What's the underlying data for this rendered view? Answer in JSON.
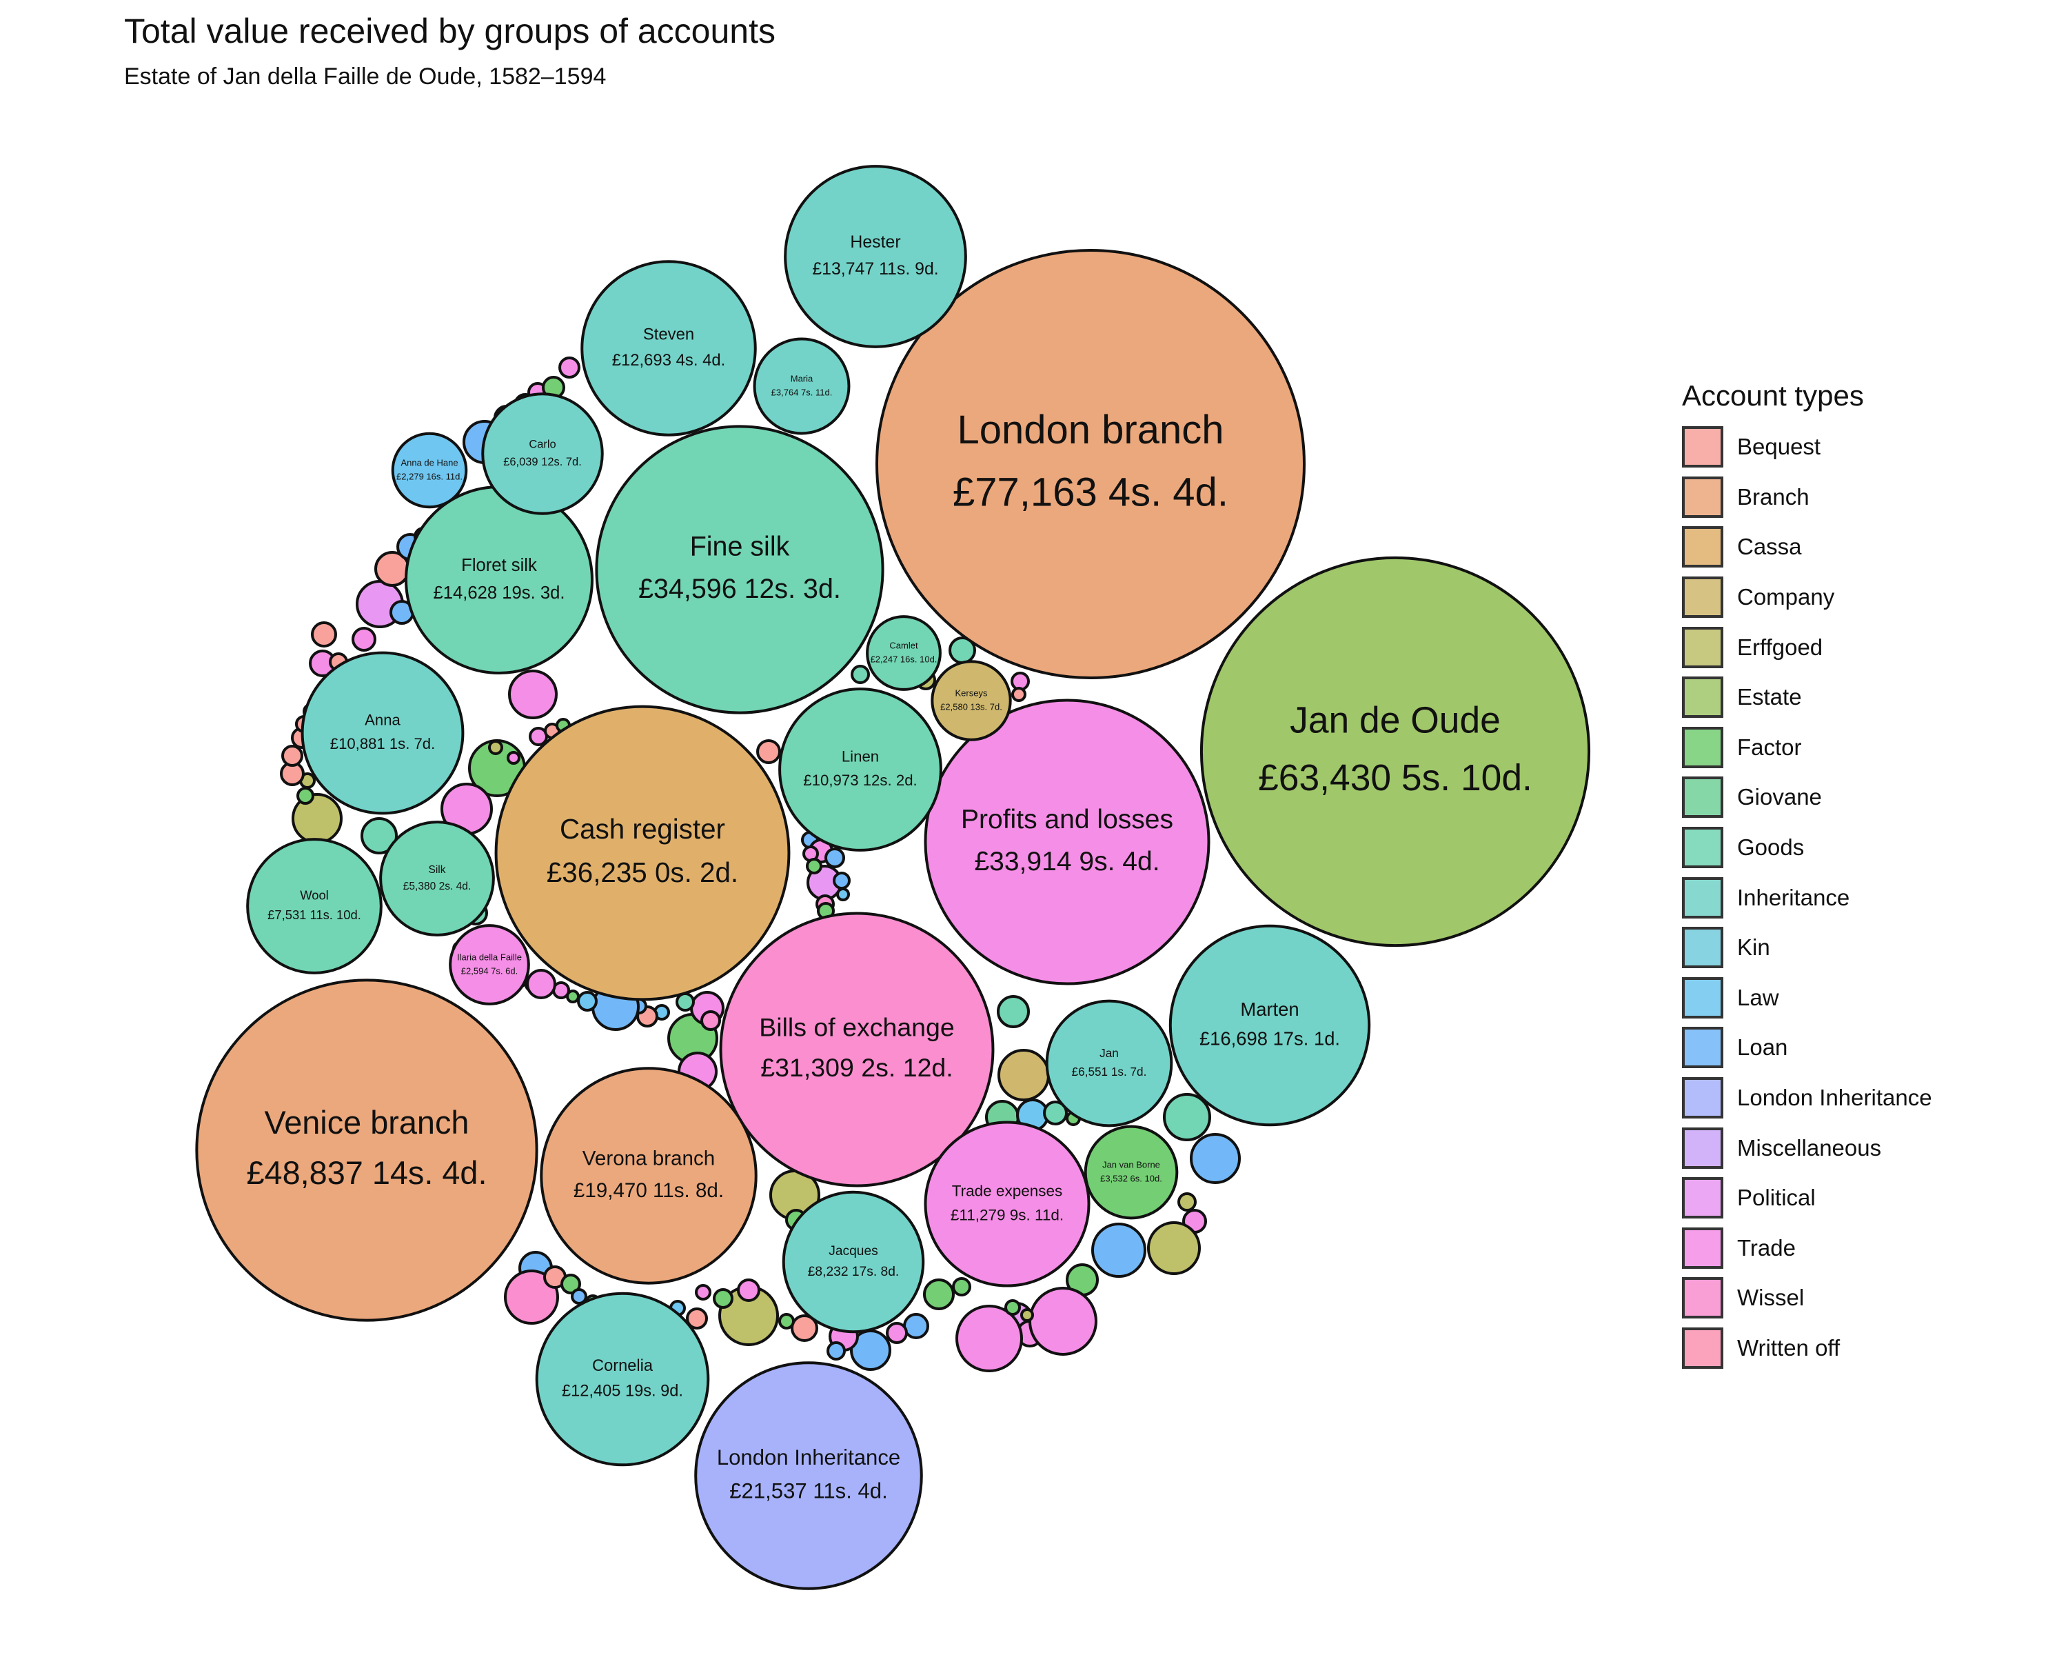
{
  "chart_data": {
    "type": "packed-bubble",
    "title": "Total value received by groups of accounts",
    "subtitle": "Estate of Jan della Faille de Oude, 1582–1594",
    "legend": {
      "title": "Account types",
      "placement": "right",
      "items": [
        {
          "name": "Bequest",
          "color": "#F8A29B"
        },
        {
          "name": "Branch",
          "color": "#EBA87C"
        },
        {
          "name": "Cassa",
          "color": "#E0B06B"
        },
        {
          "name": "Company",
          "color": "#CFB86E"
        },
        {
          "name": "Erffgoed",
          "color": "#BFC06A"
        },
        {
          "name": "Estate",
          "color": "#A0C76A"
        },
        {
          "name": "Factor",
          "color": "#74CE74"
        },
        {
          "name": "Giovane",
          "color": "#72D19A"
        },
        {
          "name": "Goods",
          "color": "#72D5B4"
        },
        {
          "name": "Inheritance",
          "color": "#73D3C8"
        },
        {
          "name": "Kin",
          "color": "#73CCDC"
        },
        {
          "name": "Law",
          "color": "#6FC6F0"
        },
        {
          "name": "Loan",
          "color": "#72B8F8"
        },
        {
          "name": "London Inheritance",
          "color": "#A7B2FB"
        },
        {
          "name": "Miscellaneous",
          "color": "#CBA6F8"
        },
        {
          "name": "Political",
          "color": "#E898F2"
        },
        {
          "name": "Trade",
          "color": "#F58EE6"
        },
        {
          "name": "Wissel",
          "color": "#FA8ECF"
        },
        {
          "name": "Written off",
          "color": "#FB92B1"
        }
      ]
    },
    "accounts": [
      {
        "name": "London branch",
        "value_text": "£77,163 4s. 4d.",
        "value": 77163.22,
        "type": "Branch"
      },
      {
        "name": "Jan de Oude",
        "value_text": "£63,430 5s. 10d.",
        "value": 63430.29,
        "type": "Estate"
      },
      {
        "name": "Venice branch",
        "value_text": "£48,837 14s. 4d.",
        "value": 48837.72,
        "type": "Branch"
      },
      {
        "name": "Cash register",
        "value_text": "£36,235 0s. 2d.",
        "value": 36235.01,
        "type": "Cassa"
      },
      {
        "name": "Fine silk",
        "value_text": "£34,596 12s. 3d.",
        "value": 34596.61,
        "type": "Goods"
      },
      {
        "name": "Profits and losses",
        "value_text": "£33,914 9s. 4d.",
        "value": 33914.47,
        "type": "Trade"
      },
      {
        "name": "Bills of exchange",
        "value_text": "£31,309 2s. 12d.",
        "value": 31309.15,
        "type": "Wissel"
      },
      {
        "name": "London Inheritance",
        "value_text": "£21,537 11s. 4d.",
        "value": 21537.57,
        "type": "London Inheritance"
      },
      {
        "name": "Verona branch",
        "value_text": "£19,470 11s. 8d.",
        "value": 19470.58,
        "type": "Branch"
      },
      {
        "name": "Marten",
        "value_text": "£16,698 17s. 1d.",
        "value": 16698.85,
        "type": "Inheritance"
      },
      {
        "name": "Floret silk",
        "value_text": "£14,628 19s. 3d.",
        "value": 14628.96,
        "type": "Goods"
      },
      {
        "name": "Hester",
        "value_text": "£13,747 11s. 9d.",
        "value": 13747.59,
        "type": "Inheritance"
      },
      {
        "name": "Steven",
        "value_text": "£12,693 4s. 4d.",
        "value": 12693.22,
        "type": "Inheritance"
      },
      {
        "name": "Cornelia",
        "value_text": "£12,405 19s. 9d.",
        "value": 12405.99,
        "type": "Inheritance"
      },
      {
        "name": "Trade expenses",
        "value_text": "£11,279 9s. 11d.",
        "value": 11279.5,
        "type": "Trade"
      },
      {
        "name": "Linen",
        "value_text": "£10,973 12s. 2d.",
        "value": 10973.61,
        "type": "Goods"
      },
      {
        "name": "Anna",
        "value_text": "£10,881 1s. 7d.",
        "value": 10881.08,
        "type": "Inheritance"
      },
      {
        "name": "Jacques",
        "value_text": "£8,232 17s. 8d.",
        "value": 8232.88,
        "type": "Inheritance"
      },
      {
        "name": "Wool",
        "value_text": "£7,531 11s. 10d.",
        "value": 7531.59,
        "type": "Goods"
      },
      {
        "name": "Jan",
        "value_text": "£6,551 1s. 7d.",
        "value": 6551.08,
        "type": "Inheritance"
      },
      {
        "name": "Carlo",
        "value_text": "£6,039 12s. 7d.",
        "value": 6039.63,
        "type": "Inheritance"
      },
      {
        "name": "Silk",
        "value_text": "£5,380 2s. 4d.",
        "value": 5380.12,
        "type": "Goods"
      },
      {
        "name": "Maria",
        "value_text": "£3,764 7s. 11d.",
        "value": 3764.4,
        "type": "Inheritance"
      },
      {
        "name": "Jan van Borne",
        "value_text": "£3,532 6s. 10d.",
        "value": 3532.34,
        "type": "Factor"
      },
      {
        "name": "Ilaria della Faille",
        "value_text": "£2,594 7s. 6d.",
        "value": 2594.38,
        "type": "Trade"
      },
      {
        "name": "Kerseys",
        "value_text": "£2,580 13s. 7d.",
        "value": 2580.68,
        "type": "Company"
      },
      {
        "name": "Anna de Hane",
        "value_text": "£2,279 16s. 11d.",
        "value": 2279.85,
        "type": "Law"
      },
      {
        "name": "Camlet",
        "value_text": "£2,247 16s. 10d.",
        "value": 2247.84,
        "type": "Goods"
      }
    ]
  }
}
